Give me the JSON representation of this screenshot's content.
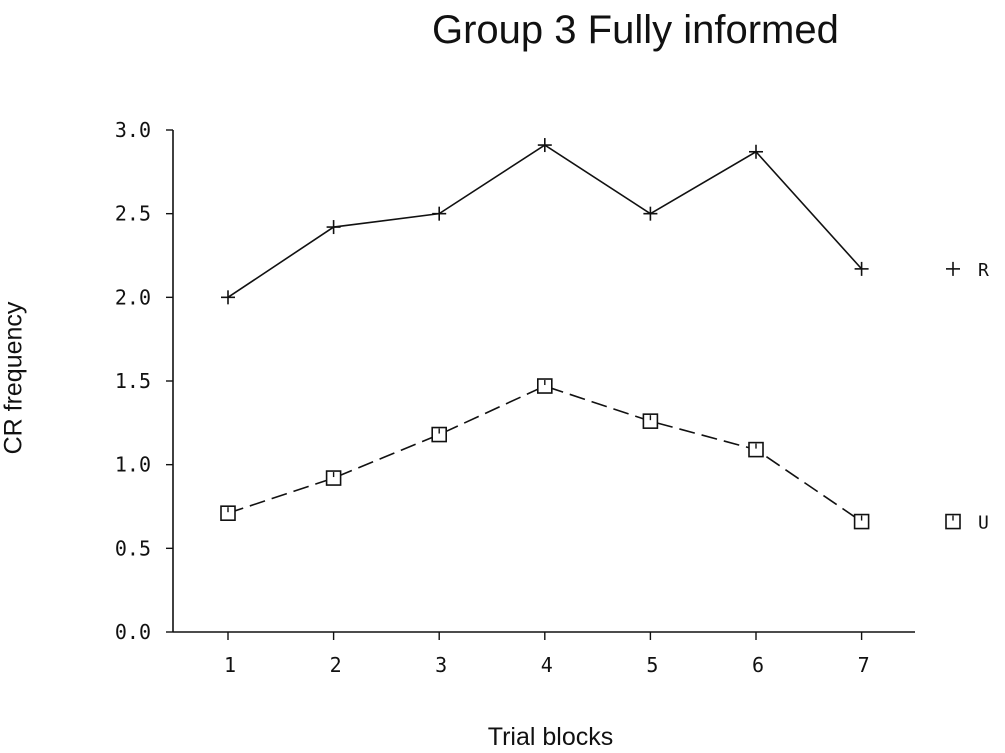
{
  "chart_data": {
    "type": "line",
    "title": "Group 3 Fully informed",
    "xlabel": "Trial blocks",
    "ylabel": "CR frequency",
    "categories": [
      "1",
      "2",
      "3",
      "4",
      "5",
      "6",
      "7"
    ],
    "y_ticks": [
      "0.0",
      "0.5",
      "1.0",
      "1.5",
      "2.0",
      "2.5",
      "3.0"
    ],
    "ylim": [
      0,
      3
    ],
    "grid": false,
    "legend_position": "right",
    "series": [
      {
        "name": "R",
        "marker": "plus",
        "line_style": "solid",
        "color": "#111111",
        "values": [
          2.0,
          2.42,
          2.5,
          2.91,
          2.5,
          2.87,
          2.17
        ]
      },
      {
        "name": "U",
        "marker": "square",
        "line_style": "dashed",
        "color": "#111111",
        "values": [
          0.71,
          0.92,
          1.18,
          1.47,
          1.26,
          1.09,
          0.66
        ]
      }
    ]
  }
}
